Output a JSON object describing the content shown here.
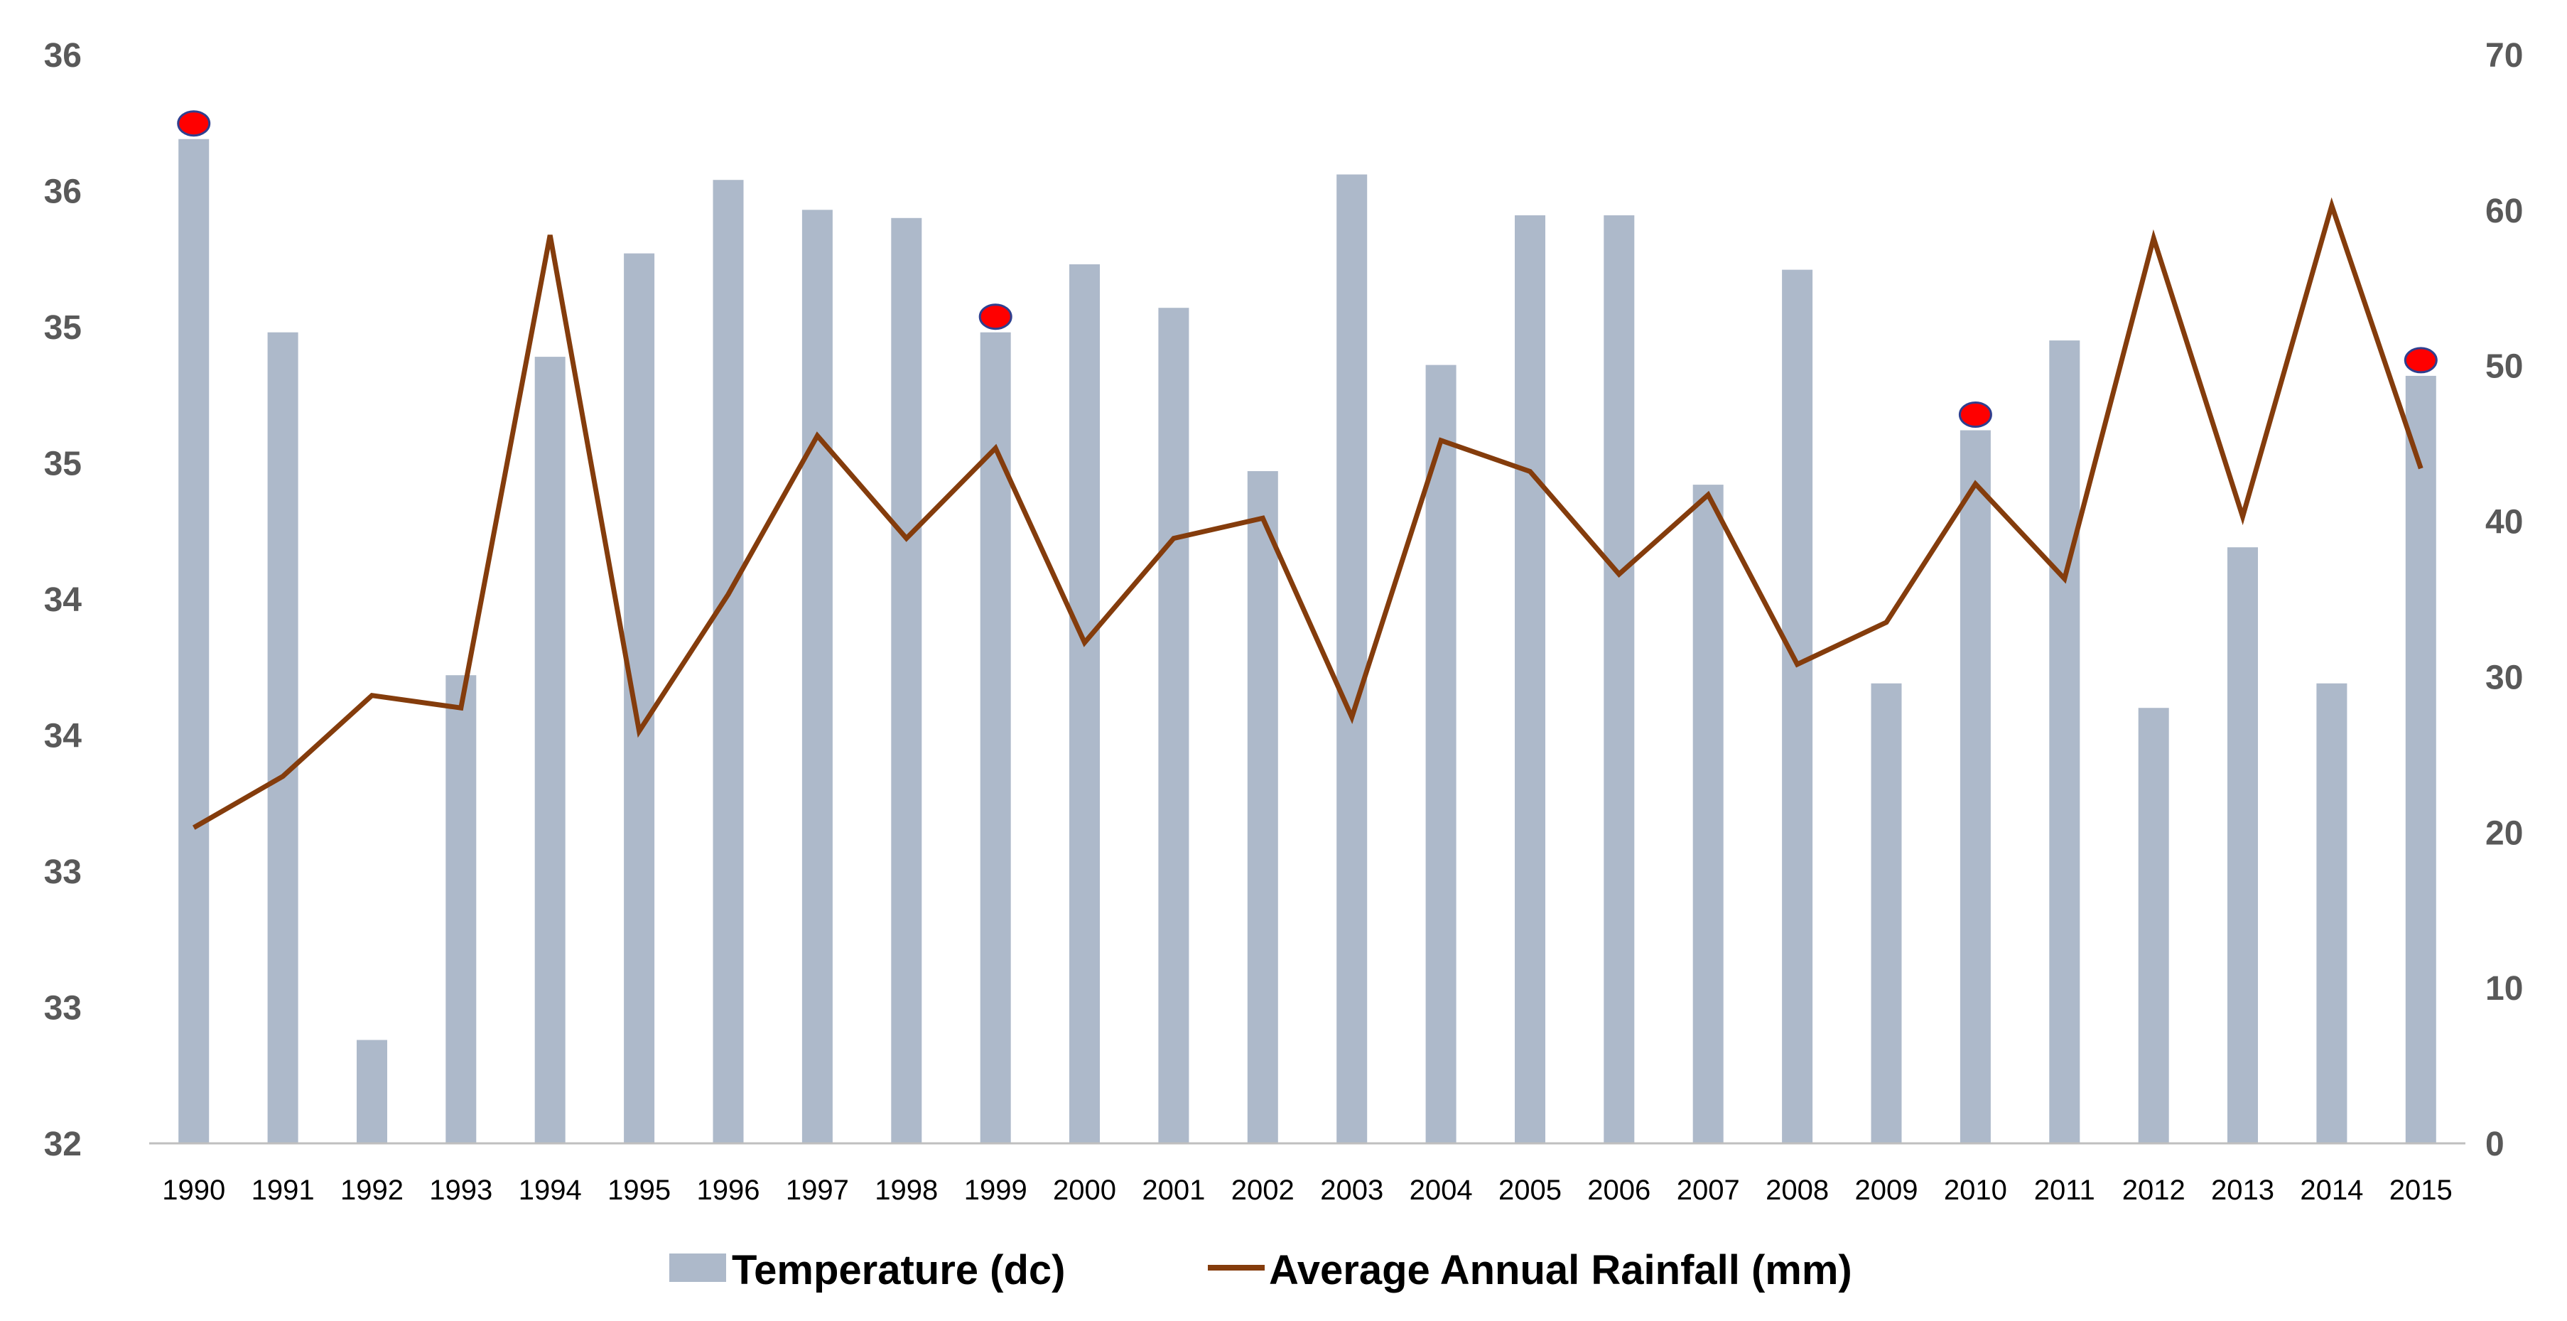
{
  "chart_data": {
    "type": "bar",
    "categories": [
      "1990",
      "1991",
      "1992",
      "1993",
      "1994",
      "1995",
      "1996",
      "1997",
      "1998",
      "1999",
      "2000",
      "2001",
      "2002",
      "2003",
      "2004",
      "2005",
      "2006",
      "2007",
      "2008",
      "2009",
      "2010",
      "2011",
      "2012",
      "2013",
      "2014",
      "2015"
    ],
    "y_left": {
      "ticks": [
        "32",
        "33",
        "33",
        "34",
        "34",
        "35",
        "35",
        "36",
        "36"
      ],
      "range": [
        32,
        36
      ]
    },
    "y_right": {
      "ticks": [
        "0",
        "10",
        "20",
        "30",
        "40",
        "50",
        "60",
        "70"
      ],
      "range": [
        0,
        70
      ]
    },
    "series": [
      {
        "name": "Temperature (dc)",
        "type": "bar",
        "axis": "left",
        "color": "#adb9ca",
        "values": [
          35.69,
          34.98,
          32.38,
          33.72,
          34.89,
          35.27,
          35.54,
          35.43,
          35.4,
          34.98,
          35.23,
          35.07,
          34.47,
          35.56,
          34.86,
          35.41,
          35.41,
          34.42,
          35.21,
          33.69,
          34.62,
          34.95,
          33.6,
          34.19,
          33.69,
          34.82
        ]
      },
      {
        "name": "Average Annual Rainfall (mm)",
        "type": "line",
        "axis": "right",
        "color": "#843c0c",
        "values": [
          20.3,
          23.6,
          28.8,
          28.0,
          58.4,
          26.5,
          35.3,
          45.5,
          38.9,
          44.7,
          32.2,
          38.9,
          40.2,
          27.4,
          45.2,
          43.2,
          36.6,
          41.7,
          30.8,
          33.5,
          42.4,
          36.3,
          58.2,
          40.3,
          60.3,
          43.4
        ]
      }
    ],
    "highlight_markers": {
      "color": "#ff0000",
      "outline": "#2f3f8f",
      "categories": [
        "1990",
        "1999",
        "2010",
        "2015"
      ]
    },
    "grid": false,
    "legend": "bottom-center"
  }
}
